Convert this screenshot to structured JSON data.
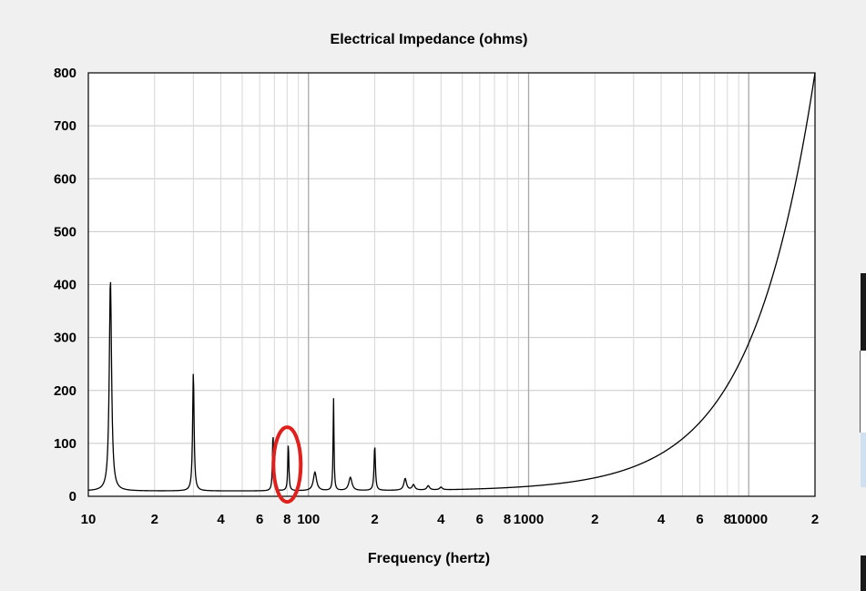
{
  "chart_data": {
    "type": "line",
    "title": "Electrical Impedance (ohms)",
    "xlabel": "Frequency (hertz)",
    "ylabel": "",
    "x_scale": "log",
    "xlim": [
      10,
      20000
    ],
    "ylim": [
      0,
      800
    ],
    "grid": true,
    "y_ticks": [
      {
        "value": 0,
        "label": "0"
      },
      {
        "value": 100,
        "label": "100"
      },
      {
        "value": 200,
        "label": "200"
      },
      {
        "value": 300,
        "label": "300"
      },
      {
        "value": 400,
        "label": "400"
      },
      {
        "value": 500,
        "label": "500"
      },
      {
        "value": 600,
        "label": "600"
      },
      {
        "value": 700,
        "label": "700"
      },
      {
        "value": 800,
        "label": "800"
      }
    ],
    "x_ticks": [
      {
        "value": 10,
        "label": "10"
      },
      {
        "value": 20,
        "label": "2"
      },
      {
        "value": 40,
        "label": "4"
      },
      {
        "value": 60,
        "label": "6"
      },
      {
        "value": 80,
        "label": "8"
      },
      {
        "value": 100,
        "label": "100"
      },
      {
        "value": 200,
        "label": "2"
      },
      {
        "value": 400,
        "label": "4"
      },
      {
        "value": 600,
        "label": "6"
      },
      {
        "value": 800,
        "label": "8"
      },
      {
        "value": 1000,
        "label": "1000"
      },
      {
        "value": 2000,
        "label": "2"
      },
      {
        "value": 4000,
        "label": "4"
      },
      {
        "value": 6000,
        "label": "6"
      },
      {
        "value": 8000,
        "label": "8"
      },
      {
        "value": 10000,
        "label": "10000"
      },
      {
        "value": 20000,
        "label": "2"
      }
    ],
    "series": [
      {
        "color": "#000000",
        "baseline": {
          "z0": 10,
          "z_at_20khz": 800,
          "exponent": 1.5
        },
        "peaks": [
          {
            "x": 12.6,
            "height": 400,
            "q": 35
          },
          {
            "x": 30,
            "height": 225,
            "q": 55
          },
          {
            "x": 69,
            "height": 110,
            "q": 75
          },
          {
            "x": 81,
            "height": 90,
            "q": 75
          },
          {
            "x": 107,
            "height": 35,
            "q": 25
          },
          {
            "x": 130,
            "height": 175,
            "q": 90
          },
          {
            "x": 155,
            "height": 25,
            "q": 25
          },
          {
            "x": 200,
            "height": 85,
            "q": 60
          },
          {
            "x": 275,
            "height": 22,
            "q": 30
          },
          {
            "x": 300,
            "height": 10,
            "q": 30
          },
          {
            "x": 350,
            "height": 8,
            "q": 30
          },
          {
            "x": 400,
            "height": 5,
            "q": 30
          }
        ]
      }
    ],
    "annotations": [
      {
        "type": "ellipse",
        "x": 80,
        "y": 60,
        "color": "#e0201c"
      }
    ]
  }
}
